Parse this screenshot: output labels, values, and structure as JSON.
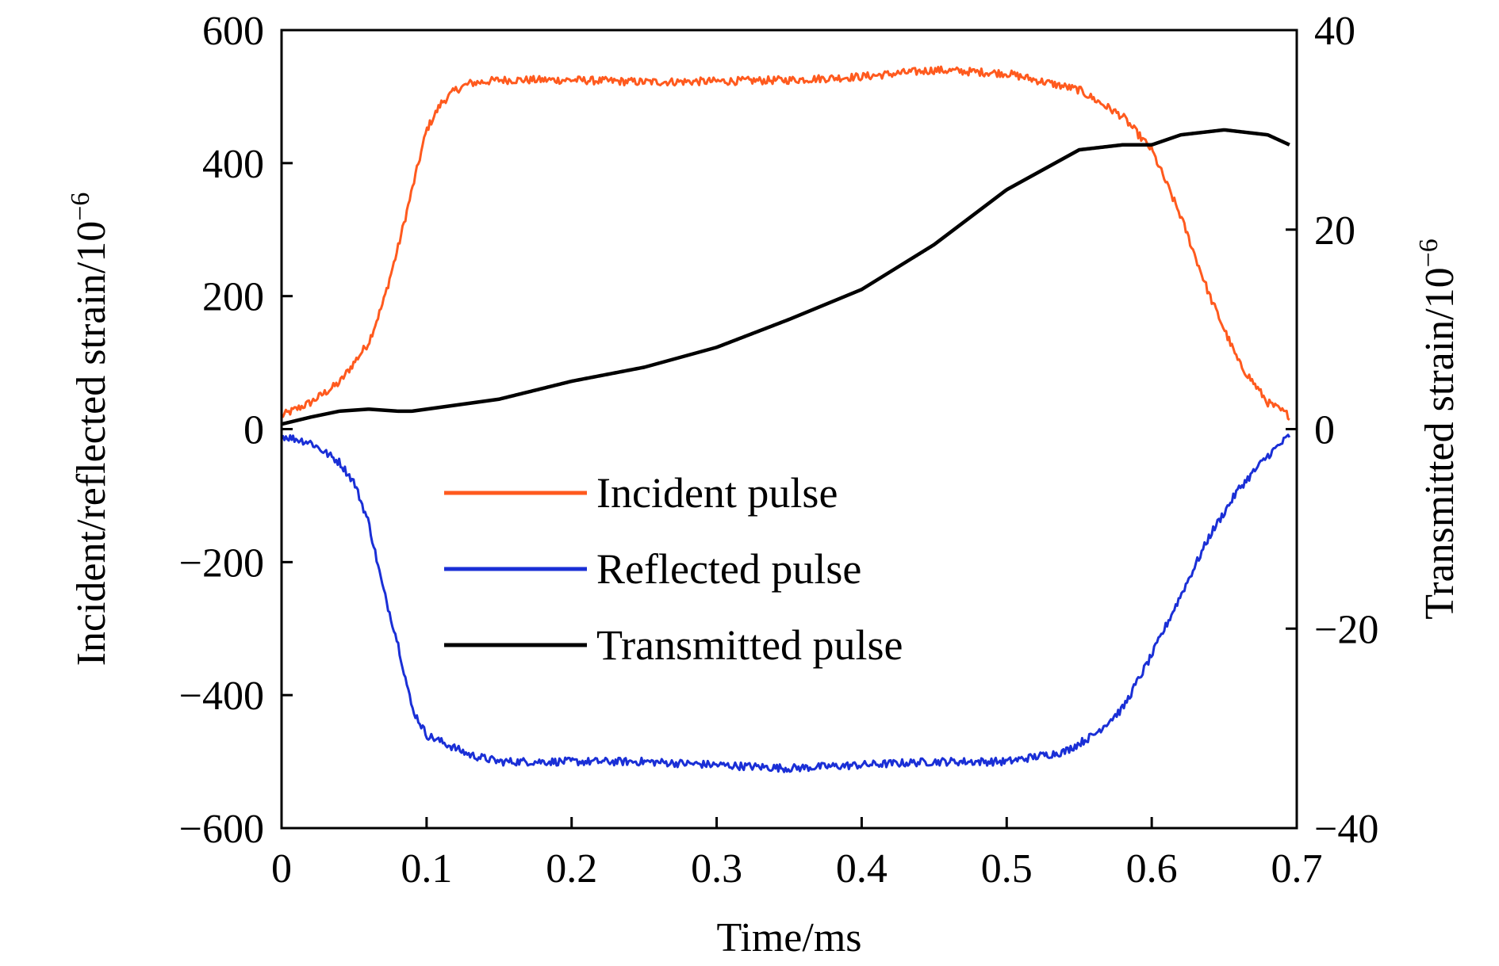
{
  "chart_data": {
    "type": "line",
    "title": "",
    "xlabel": "Time/ms",
    "ylabel_left": "Incident/reflected strain/10",
    "ylabel_left_exp": "−6",
    "ylabel_right": "Transmitted strain/10",
    "ylabel_right_exp": "−6",
    "xlim": [
      0,
      0.7
    ],
    "ylim_left": [
      -600,
      600
    ],
    "ylim_right": [
      -40,
      40
    ],
    "x_ticks": [
      "0",
      "0.1",
      "0.2",
      "0.3",
      "0.4",
      "0.5",
      "0.6",
      "0.7"
    ],
    "x_tick_values": [
      0,
      0.1,
      0.2,
      0.3,
      0.4,
      0.5,
      0.6,
      0.7
    ],
    "y_left_ticks": [
      "600",
      "400",
      "200",
      "0",
      "−200",
      "−400",
      "−600"
    ],
    "y_left_tick_values": [
      600,
      400,
      200,
      0,
      -200,
      -400,
      -600
    ],
    "y_right_ticks": [
      "40",
      "20",
      "0",
      "−20",
      "−40"
    ],
    "y_right_tick_values": [
      40,
      20,
      0,
      -20,
      -40
    ],
    "grid": false,
    "legend_position": "center-left",
    "series": [
      {
        "name": "Incident pulse",
        "axis": "left",
        "color": "#ff5a1e",
        "noise": 6,
        "x": [
          0,
          0.02,
          0.04,
          0.06,
          0.07,
          0.08,
          0.09,
          0.1,
          0.11,
          0.12,
          0.13,
          0.15,
          0.2,
          0.25,
          0.3,
          0.35,
          0.4,
          0.45,
          0.5,
          0.55,
          0.58,
          0.6,
          0.62,
          0.64,
          0.66,
          0.68,
          0.695
        ],
        "y": [
          20,
          40,
          70,
          130,
          190,
          270,
          360,
          450,
          490,
          510,
          520,
          525,
          525,
          522,
          523,
          525,
          530,
          540,
          535,
          510,
          470,
          420,
          320,
          200,
          100,
          40,
          20
        ]
      },
      {
        "name": "Reflected pulse",
        "axis": "left",
        "color": "#1a2fd6",
        "noise": 6,
        "x": [
          0,
          0.02,
          0.04,
          0.05,
          0.06,
          0.07,
          0.08,
          0.09,
          0.1,
          0.11,
          0.13,
          0.15,
          0.2,
          0.25,
          0.3,
          0.35,
          0.4,
          0.45,
          0.5,
          0.54,
          0.56,
          0.58,
          0.6,
          0.62,
          0.64,
          0.66,
          0.68,
          0.695
        ],
        "y": [
          -10,
          -20,
          -50,
          -80,
          -140,
          -240,
          -320,
          -420,
          -460,
          -470,
          -490,
          -500,
          -500,
          -500,
          -505,
          -510,
          -505,
          -500,
          -500,
          -485,
          -460,
          -420,
          -340,
          -250,
          -160,
          -90,
          -40,
          -10
        ]
      },
      {
        "name": "Transmitted pulse",
        "axis": "right",
        "color": "#000000",
        "noise": 0,
        "x": [
          0,
          0.02,
          0.04,
          0.06,
          0.08,
          0.09,
          0.1,
          0.15,
          0.2,
          0.25,
          0.3,
          0.35,
          0.4,
          0.45,
          0.5,
          0.55,
          0.58,
          0.6,
          0.62,
          0.65,
          0.68,
          0.695
        ],
        "y": [
          0.5,
          1.2,
          1.8,
          2.0,
          1.8,
          1.8,
          2.0,
          3.0,
          4.8,
          6.2,
          8.2,
          11.0,
          14.0,
          18.5,
          24.0,
          28.0,
          28.5,
          28.5,
          29.5,
          30.0,
          29.5,
          28.5
        ]
      }
    ]
  }
}
